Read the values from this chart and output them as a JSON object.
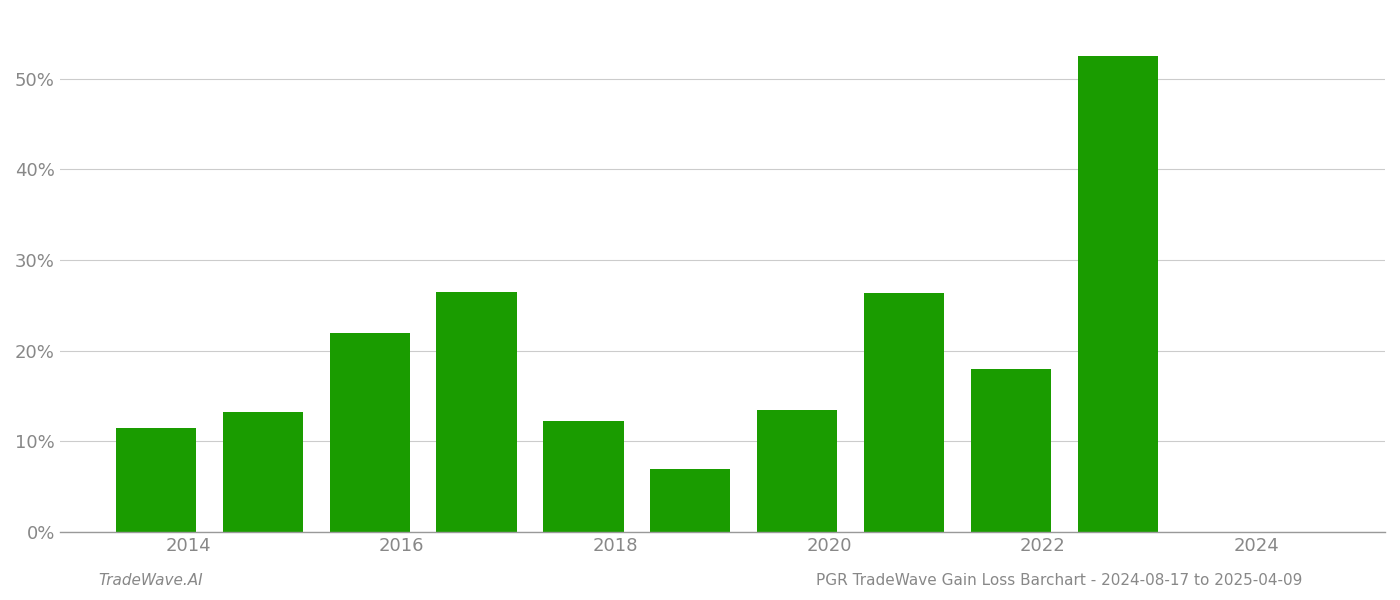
{
  "bar_positions": [
    2013.7,
    2014.7,
    2015.7,
    2016.7,
    2017.7,
    2018.7,
    2019.7,
    2020.7,
    2021.7,
    2022.7
  ],
  "values": [
    11.5,
    13.2,
    22.0,
    26.5,
    12.3,
    7.0,
    13.5,
    26.4,
    18.0,
    52.5
  ],
  "bar_color": "#1a9c00",
  "background_color": "#ffffff",
  "grid_color": "#cccccc",
  "axis_color": "#999999",
  "tick_color": "#888888",
  "yticks": [
    0,
    10,
    20,
    30,
    40,
    50
  ],
  "xticks": [
    2014,
    2016,
    2018,
    2020,
    2022,
    2024
  ],
  "xlim": [
    2012.8,
    2025.2
  ],
  "ylim": [
    0,
    57
  ],
  "footer_left": "TradeWave.AI",
  "footer_right": "PGR TradeWave Gain Loss Barchart - 2024-08-17 to 2025-04-09",
  "footer_color": "#888888",
  "bar_width": 0.75
}
